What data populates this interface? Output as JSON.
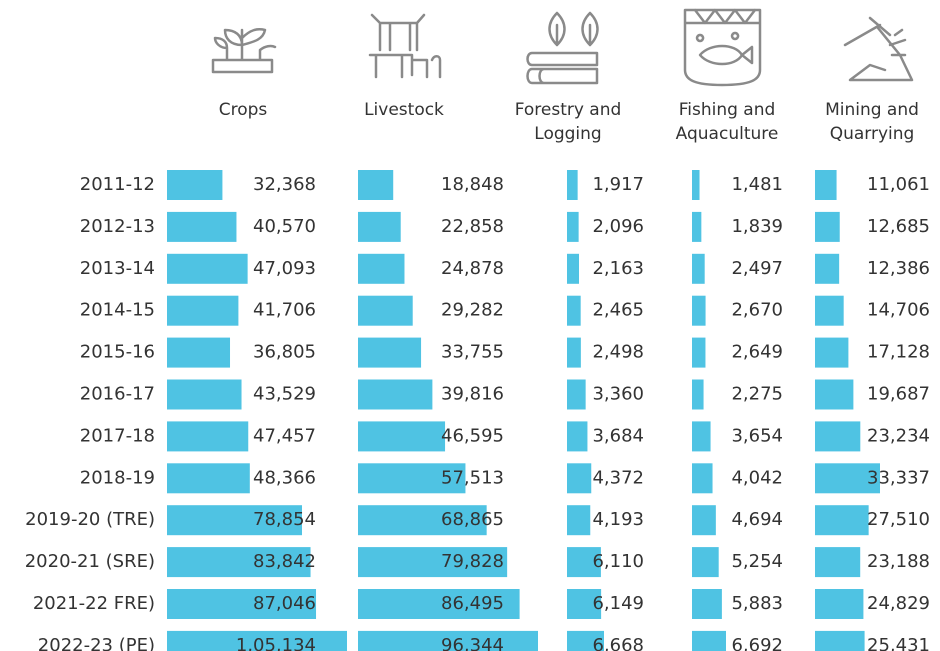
{
  "chart_data": {
    "type": "bar",
    "color": "#4fc3e3",
    "categories": [
      "2011-12",
      "2012-13",
      "2013-14",
      "2014-15",
      "2015-16",
      "2016-17",
      "2017-18",
      "2018-19",
      "2019-20 (TRE)",
      "2020-21 (SRE)",
      "2021-22 FRE)",
      "2022-23 (PE)"
    ],
    "series": [
      {
        "name": "Crops",
        "values": [
          32368,
          40570,
          47093,
          41706,
          36805,
          43529,
          47457,
          48366,
          78854,
          83842,
          87046,
          105134
        ],
        "value_labels": [
          "32,368",
          "40,570",
          "47,093",
          "41,706",
          "36,805",
          "43,529",
          "47,457",
          "48,366",
          "78,854",
          "83,842",
          "87,046",
          "1,05,134"
        ]
      },
      {
        "name": "Livestock",
        "values": [
          18848,
          22858,
          24878,
          29282,
          33755,
          39816,
          46595,
          57513,
          68865,
          79828,
          86495,
          96344
        ],
        "value_labels": [
          "18,848",
          "22,858",
          "24,878",
          "29,282",
          "33,755",
          "39,816",
          "46,595",
          "57,513",
          "68,865",
          "79,828",
          "86,495",
          "96,344"
        ]
      },
      {
        "name": "Forestry and\nLogging",
        "values": [
          1917,
          2096,
          2163,
          2465,
          2498,
          3360,
          3684,
          4372,
          4193,
          6110,
          6149,
          6668
        ],
        "value_labels": [
          "1,917",
          "2,096",
          "2,163",
          "2,465",
          "2,498",
          "3,360",
          "3,684",
          "4,372",
          "4,193",
          "6,110",
          "6,149",
          "6,668"
        ]
      },
      {
        "name": "Fishing and\nAquaculture",
        "values": [
          1481,
          1839,
          2497,
          2670,
          2649,
          2275,
          3654,
          4042,
          4694,
          5254,
          5883,
          6692
        ],
        "value_labels": [
          "1,481",
          "1,839",
          "2,497",
          "2,670",
          "2,649",
          "2,275",
          "3,654",
          "4,042",
          "4,694",
          "5,254",
          "5,883",
          "6,692"
        ]
      },
      {
        "name": "Mining and\nQuarrying",
        "values": [
          11061,
          12685,
          12386,
          14706,
          17128,
          19687,
          23234,
          33337,
          27510,
          23188,
          24829,
          25431
        ],
        "value_labels": [
          "11,061",
          "12,685",
          "12,386",
          "14,706",
          "17,128",
          "19,687",
          "23,234",
          "33,337",
          "27,510",
          "23,188",
          "24,829",
          "25,431"
        ]
      }
    ]
  }
}
